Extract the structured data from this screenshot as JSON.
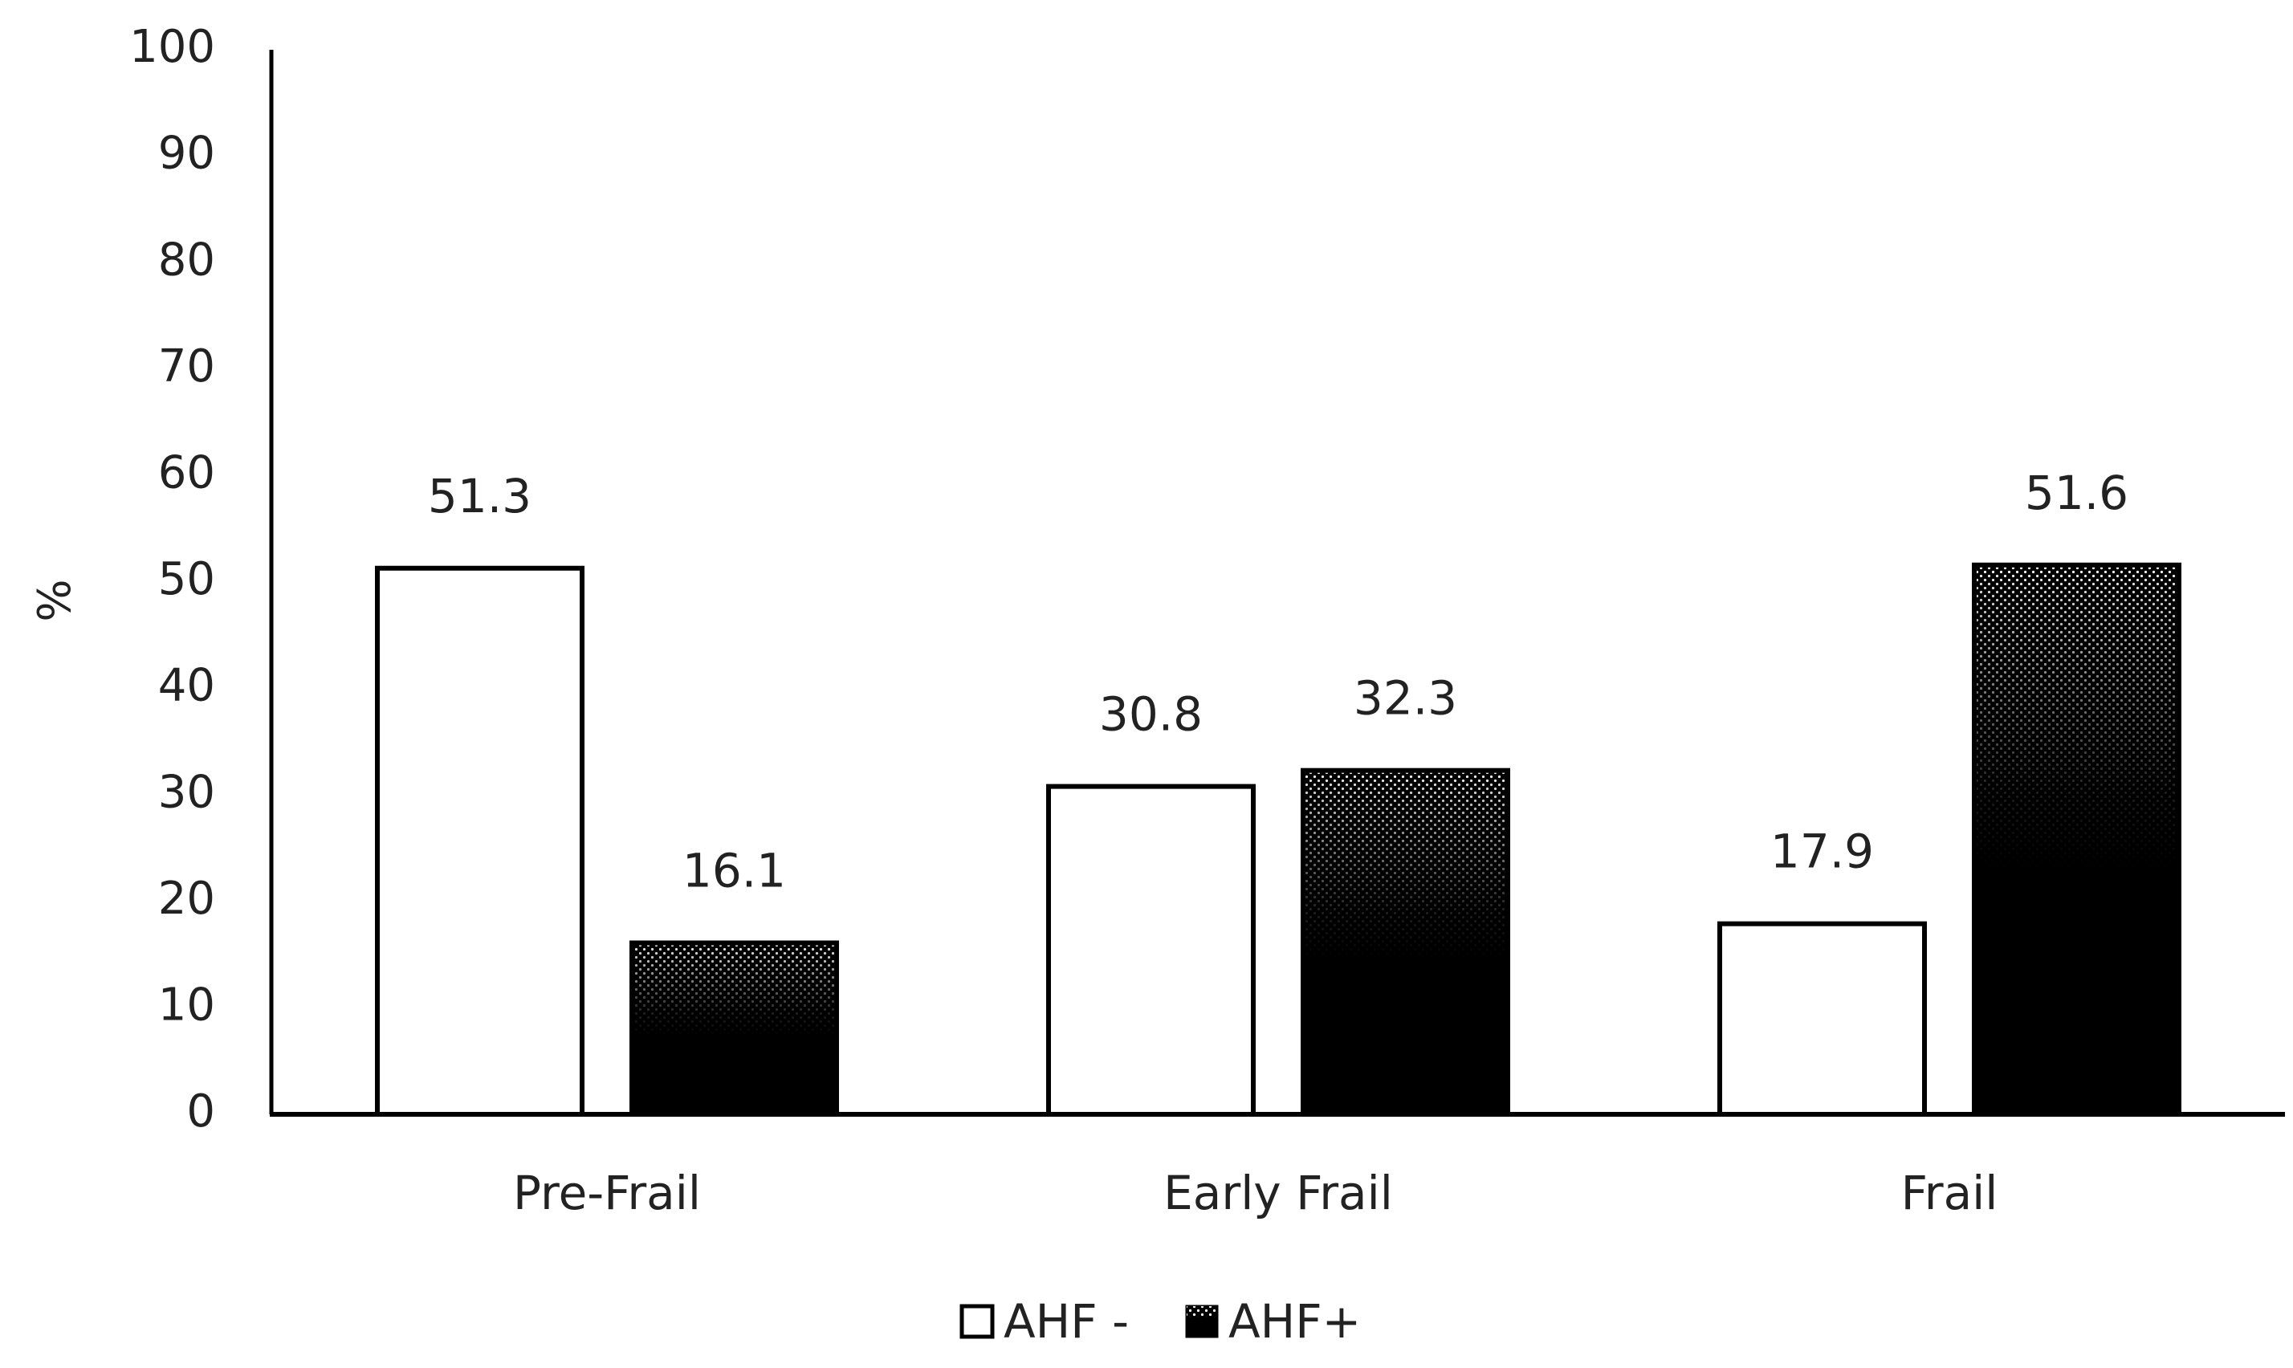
{
  "chart_data": {
    "type": "bar",
    "categories": [
      "Pre-Frail",
      "Early Frail",
      "Frail"
    ],
    "series": [
      {
        "name": "AHF -",
        "values": [
          51.3,
          30.8,
          17.9
        ],
        "style": "white-fill-black-outline",
        "color": "#ffffff"
      },
      {
        "name": "AHF+",
        "values": [
          16.1,
          32.3,
          51.6
        ],
        "style": "black-to-gray-stipple-gradient",
        "color": "#000000"
      }
    ],
    "data_labels": [
      [
        "51.3",
        "30.8",
        "17.9"
      ],
      [
        "16.1",
        "32.3",
        "51.6"
      ]
    ],
    "title": "",
    "xlabel": "",
    "ylabel": "%",
    "ylim": [
      0,
      100
    ],
    "yticks": [
      0,
      10,
      20,
      30,
      40,
      50,
      60,
      70,
      80,
      90,
      100
    ],
    "ytick_labels": [
      "0",
      "10",
      "20",
      "30",
      "40",
      "50",
      "60",
      "70",
      "80",
      "90",
      "100"
    ],
    "grid": false,
    "legend_position": "bottom-center"
  }
}
